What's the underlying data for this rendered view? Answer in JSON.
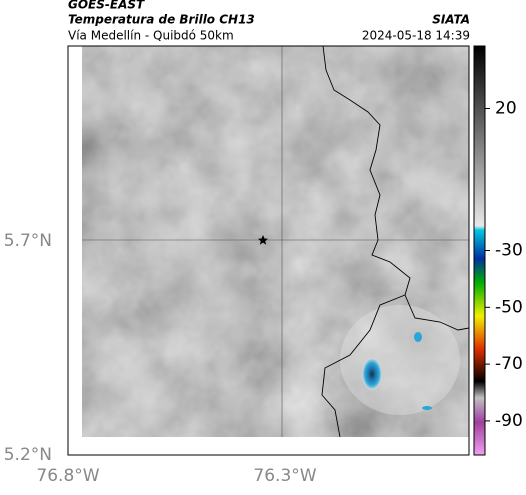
{
  "header": {
    "satellite": "GOES-EAST",
    "product": "Temperatura de Brillo CH13",
    "source": "SIATA",
    "region": "Vía Medellín - Quibdó 50km",
    "datetime": "2024-05-18 14:39"
  },
  "map": {
    "lat_labels": [
      "5.7°N",
      "5.2°N"
    ],
    "lon_labels": [
      "76.8°W",
      "76.3°W"
    ]
  },
  "colorbar": {
    "lim": [
      42,
      -102
    ],
    "ticks": [
      20,
      -30,
      -50,
      -70,
      -90
    ]
  }
}
